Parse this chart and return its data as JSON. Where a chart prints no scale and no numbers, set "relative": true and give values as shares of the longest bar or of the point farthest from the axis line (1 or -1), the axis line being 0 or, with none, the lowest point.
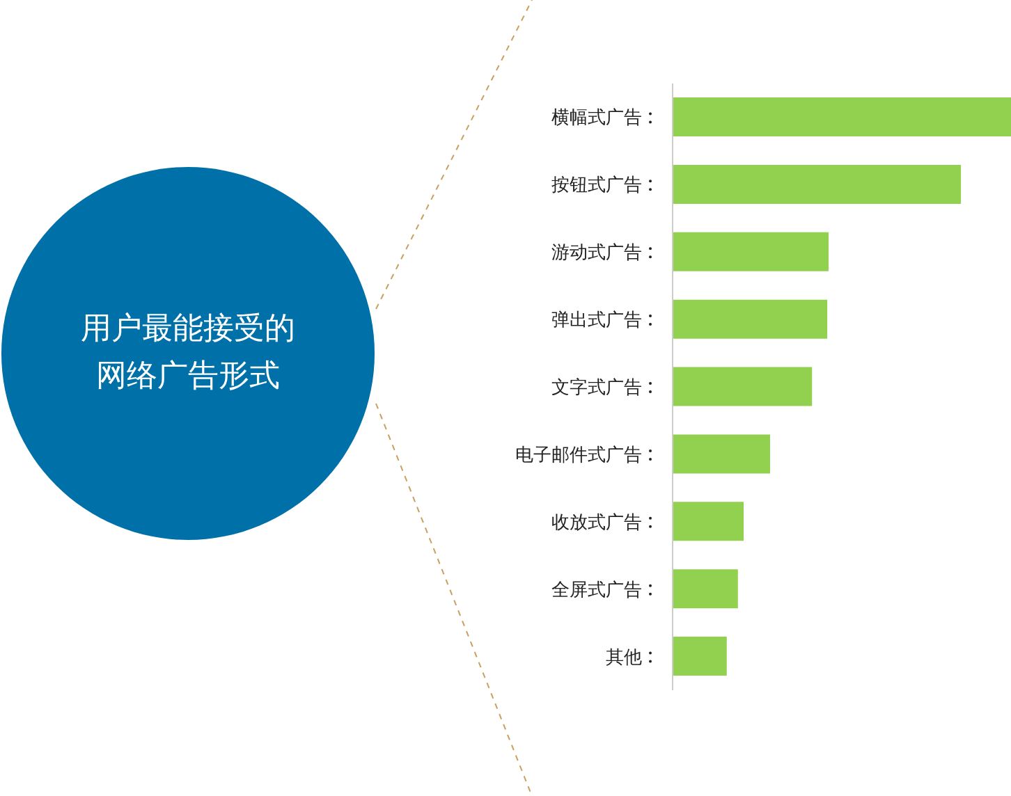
{
  "chart_data": {
    "type": "bar",
    "title": "用户最能接受的网络广告形式",
    "orientation": "horizontal",
    "relative": true,
    "categories": [
      "横幅式广告",
      "按钮式广告",
      "游动式广告",
      "弹出式广告",
      "文字式广告",
      "电子邮件式广告",
      "收放式广告",
      "全屏式广告",
      "其他"
    ],
    "values": [
      1,
      0.852,
      0.461,
      0.457,
      0.412,
      0.288,
      0.21,
      0.193,
      0.16
    ],
    "color": "#92d050",
    "grid": false,
    "legend": false
  }
}
